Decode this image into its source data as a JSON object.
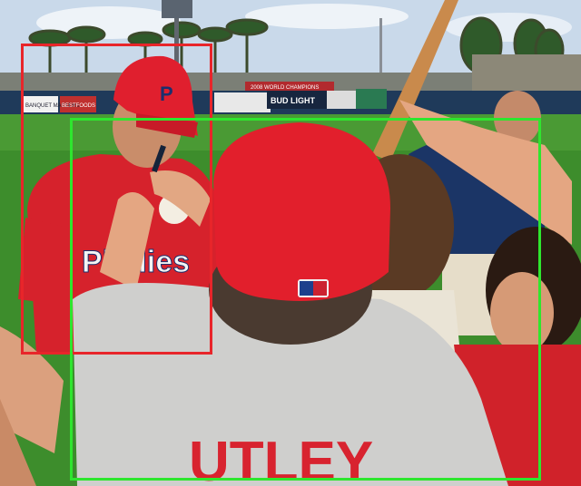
{
  "image": {
    "description_free": true
  },
  "signs": {
    "sign_1": "BANQUET MASTERS",
    "sign_2": "BESTFOODS",
    "sign_3": "BUD LIGHT",
    "banner": "2008 WORLD CHAMPIONS"
  },
  "caps": {
    "logo_letter": "P"
  },
  "jersey": {
    "text": "Phillies"
  },
  "shirt": {
    "text": "UTLEY"
  },
  "boxes": [
    {
      "id": "red",
      "color": "#e8252a"
    },
    {
      "id": "green",
      "color": "#2ee62e"
    }
  ]
}
